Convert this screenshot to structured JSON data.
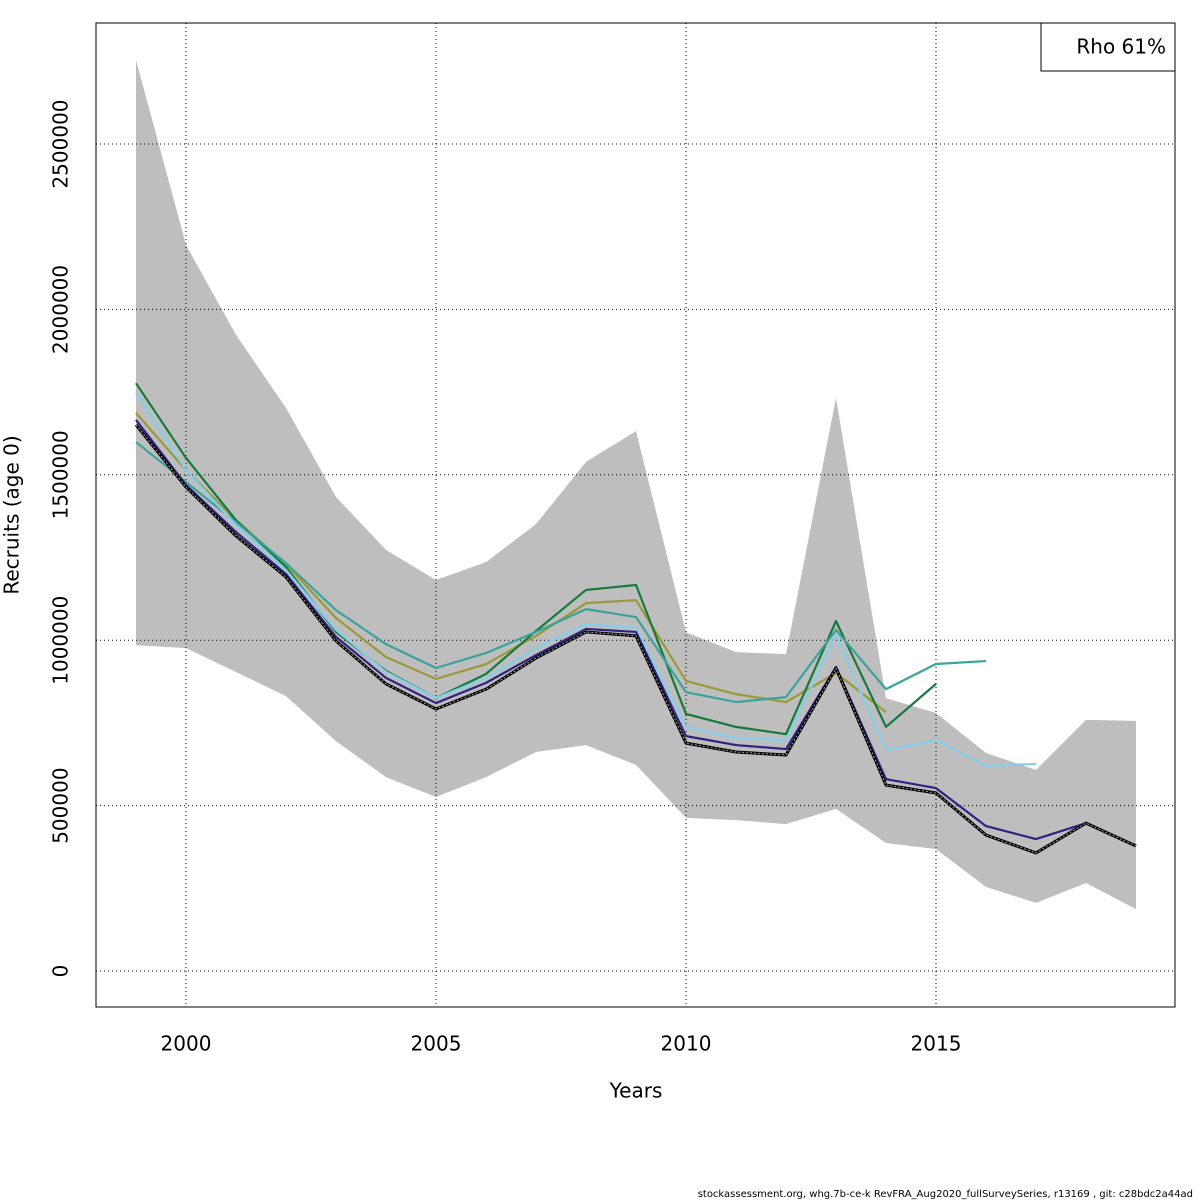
{
  "chart_data": {
    "type": "line",
    "x_label": "Years",
    "y_label": "Recruits (age 0)",
    "legend_text": "Rho 61%",
    "legend_position": "topright",
    "footer": "stockassessment.org, whg.7b-ce-k  RevFRA_Aug2020_fullSurveySeries, r13169 , git: c28bdc2a44ad",
    "x": [
      1999,
      2000,
      2001,
      2002,
      2003,
      2004,
      2005,
      2006,
      2007,
      2008,
      2009,
      2010,
      2011,
      2012,
      2013,
      2014,
      2015,
      2016,
      2017,
      2018,
      2019
    ],
    "xlim": [
      1998.2,
      2019.78
    ],
    "xticks": [
      2000,
      2005,
      2010,
      2015
    ],
    "ylim": [
      -108800,
      2865800
    ],
    "yticks": [
      0,
      500000,
      1000000,
      1500000,
      2000000,
      2500000
    ],
    "grid": true,
    "band": {
      "color": "#bebebe",
      "upper": [
        2754000,
        2195000,
        1923000,
        1702000,
        1433000,
        1273000,
        1182000,
        1236000,
        1351000,
        1539000,
        1632000,
        1024000,
        964000,
        958000,
        1732000,
        825000,
        780000,
        659000,
        608000,
        759000,
        756000
      ],
      "lower": [
        985000,
        976000,
        904000,
        831000,
        695000,
        586000,
        526000,
        586000,
        662000,
        683000,
        623000,
        463000,
        456000,
        444000,
        490000,
        387000,
        369000,
        254000,
        206000,
        266000,
        187000
      ]
    },
    "series": [
      {
        "color": "#99993a",
        "values": [
          1687000,
          1514000,
          1363000,
          1230000,
          1067000,
          949000,
          883000,
          928000,
          1013000,
          1112000,
          1121000,
          877000,
          837000,
          813000,
          901000,
          783000,
          null,
          null,
          null,
          null,
          null
        ]
      },
      {
        "color": "#157a3b",
        "values": [
          1777000,
          1551000,
          1363000,
          1221000,
          1025000,
          907000,
          825000,
          898000,
          1028000,
          1152000,
          1167000,
          777000,
          738000,
          716000,
          1058000,
          738000,
          868000,
          null,
          null,
          null,
          null
        ]
      },
      {
        "color": "#3aa39a",
        "values": [
          1599000,
          1478000,
          1357000,
          1233000,
          1091000,
          988000,
          916000,
          961000,
          1025000,
          1094000,
          1070000,
          843000,
          813000,
          828000,
          1031000,
          852000,
          928000,
          937000,
          null,
          null,
          null
        ]
      },
      {
        "color": "#87ceeb",
        "values": [
          1747000,
          1514000,
          1348000,
          1212000,
          1031000,
          904000,
          825000,
          886000,
          976000,
          1049000,
          1037000,
          738000,
          704000,
          698000,
          1016000,
          668000,
          698000,
          620000,
          626000,
          null,
          null
        ]
      },
      {
        "color": "#2f2283",
        "values": [
          1666000,
          1469000,
          1327000,
          1200000,
          1010000,
          886000,
          810000,
          871000,
          955000,
          1034000,
          1025000,
          710000,
          683000,
          671000,
          919000,
          580000,
          553000,
          438000,
          399000,
          447000,
          null
        ]
      },
      {
        "color": "#000000",
        "dotted": true,
        "values": [
          1651000,
          1463000,
          1315000,
          1191000,
          998000,
          868000,
          792000,
          852000,
          946000,
          1025000,
          1013000,
          689000,
          662000,
          653000,
          916000,
          562000,
          538000,
          411000,
          357000,
          447000,
          378000
        ]
      }
    ]
  }
}
